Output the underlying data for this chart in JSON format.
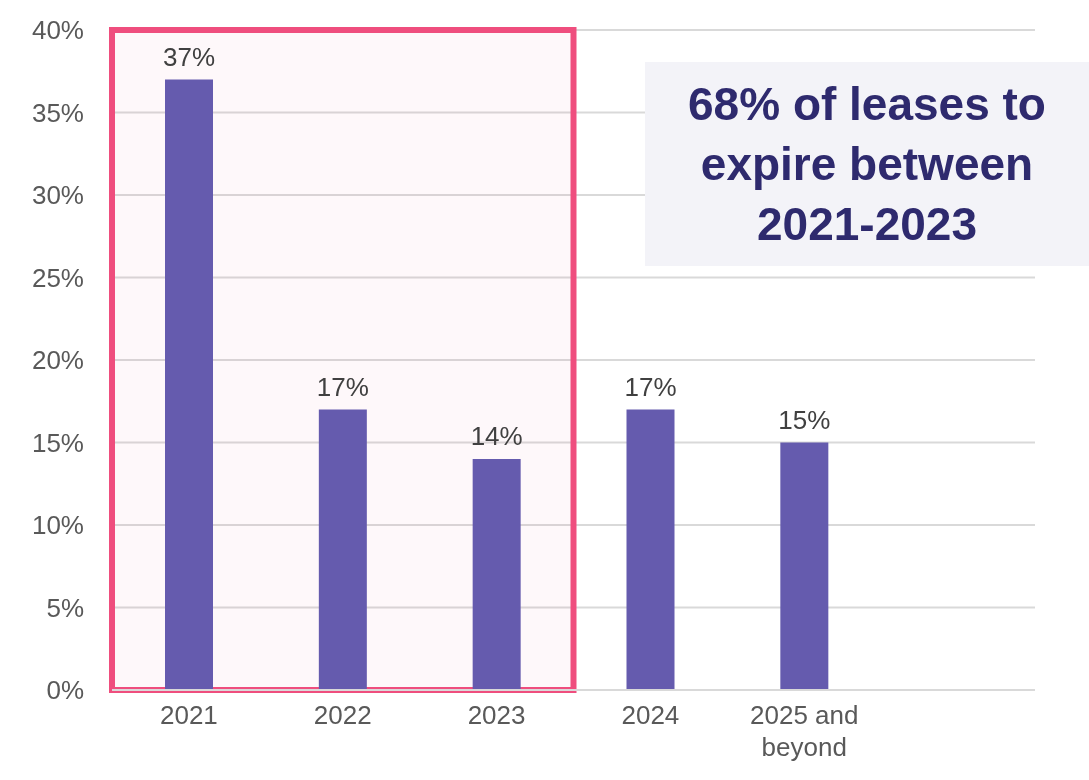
{
  "chart_data": {
    "type": "bar",
    "categories": [
      "2021",
      "2022",
      "2023",
      "2024",
      "2025 and beyond",
      null
    ],
    "values": [
      37,
      17,
      14,
      17,
      15,
      null
    ],
    "value_labels": [
      "37%",
      "17%",
      "14%",
      "17%",
      "15%",
      null
    ],
    "color": "#655bae",
    "ylim": [
      0,
      40
    ],
    "yticks": [
      {
        "value": 0,
        "label": "0%"
      },
      {
        "value": 5,
        "label": "5%"
      },
      {
        "value": 10,
        "label": "10%"
      },
      {
        "value": 15,
        "label": "15%"
      },
      {
        "value": 20,
        "label": "20%"
      },
      {
        "value": 25,
        "label": "25%"
      },
      {
        "value": 30,
        "label": "30%"
      },
      {
        "value": 35,
        "label": "35%"
      },
      {
        "value": 40,
        "label": "40%"
      }
    ],
    "grid": "y",
    "bands": [
      {
        "axis": "x",
        "from": "2021",
        "to": "2023",
        "color": "#ef4e7e"
      }
    ],
    "annotations": [
      "68% of leases to expire between 2021-2023"
    ]
  }
}
